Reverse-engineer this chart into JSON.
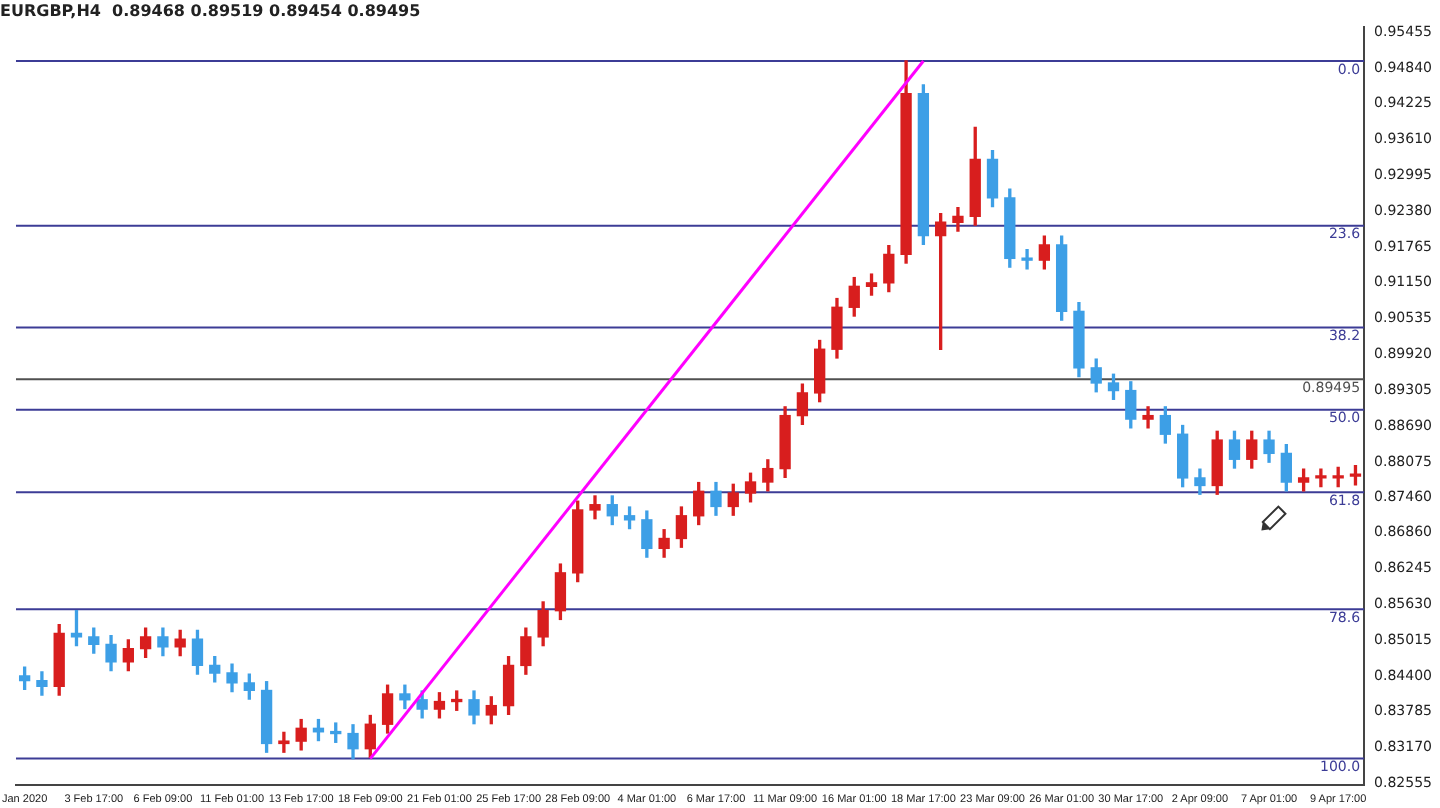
{
  "chart_data": {
    "type": "candlestick",
    "title": "EURGBP,H4  0.89468 0.89519 0.89454 0.89495",
    "categories": [
      "Jan 2020",
      null,
      null,
      null,
      "3 Feb 17:00",
      null,
      null,
      null,
      "6 Feb 09:00",
      null,
      null,
      null,
      "11 Feb 01:00",
      null,
      null,
      null,
      "13 Feb 17:00",
      null,
      null,
      null,
      "18 Feb 09:00",
      null,
      null,
      null,
      "21 Feb 01:00",
      null,
      null,
      null,
      "25 Feb 17:00",
      null,
      null,
      null,
      "28 Feb 09:00",
      null,
      null,
      null,
      "4 Mar 01:00",
      null,
      null,
      null,
      "6 Mar 17:00",
      null,
      null,
      null,
      "11 Mar 09:00",
      null,
      null,
      null,
      "16 Mar 01:00",
      null,
      null,
      null,
      "18 Mar 17:00",
      null,
      null,
      null,
      "23 Mar 09:00",
      null,
      null,
      null,
      "26 Mar 01:00",
      null,
      null,
      null,
      "30 Mar 17:00",
      null,
      null,
      null,
      "2 Apr 09:00",
      null,
      null,
      null,
      "7 Apr 01:00",
      null,
      null,
      null,
      "9 Apr 17:00",
      null
    ],
    "ohlc": [
      [
        0.844,
        0.8455,
        0.8417,
        0.8432
      ],
      [
        0.8432,
        0.8447,
        0.8407,
        0.8422
      ],
      [
        0.8422,
        0.8528,
        0.8407,
        0.8513
      ],
      [
        0.8513,
        0.8552,
        0.8492,
        0.8507
      ],
      [
        0.8507,
        0.8522,
        0.8479,
        0.8494
      ],
      [
        0.8494,
        0.8509,
        0.8449,
        0.8464
      ],
      [
        0.8464,
        0.8502,
        0.8449,
        0.8487
      ],
      [
        0.8487,
        0.8522,
        0.8472,
        0.8507
      ],
      [
        0.8507,
        0.8522,
        0.8475,
        0.849
      ],
      [
        0.849,
        0.8518,
        0.8475,
        0.8503
      ],
      [
        0.8503,
        0.8518,
        0.8443,
        0.8458
      ],
      [
        0.8458,
        0.8473,
        0.843,
        0.8445
      ],
      [
        0.8445,
        0.846,
        0.8413,
        0.8428
      ],
      [
        0.8428,
        0.8443,
        0.84,
        0.8415
      ],
      [
        0.8415,
        0.843,
        0.8309,
        0.8324
      ],
      [
        0.8324,
        0.8343,
        0.8309,
        0.8328
      ],
      [
        0.8328,
        0.8365,
        0.8313,
        0.835
      ],
      [
        0.835,
        0.8365,
        0.8329,
        0.8344
      ],
      [
        0.8344,
        0.8359,
        0.8326,
        0.8341
      ],
      [
        0.8341,
        0.8356,
        0.8298,
        0.8315
      ],
      [
        0.8315,
        0.8372,
        0.83,
        0.8357
      ],
      [
        0.8357,
        0.8424,
        0.8342,
        0.8409
      ],
      [
        0.8409,
        0.8424,
        0.8384,
        0.8399
      ],
      [
        0.8399,
        0.8414,
        0.8368,
        0.8383
      ],
      [
        0.8383,
        0.8411,
        0.8368,
        0.8396
      ],
      [
        0.8396,
        0.8414,
        0.8381,
        0.8399
      ],
      [
        0.8399,
        0.8414,
        0.8358,
        0.8373
      ],
      [
        0.8373,
        0.8404,
        0.8358,
        0.8389
      ],
      [
        0.8389,
        0.8473,
        0.8374,
        0.8458
      ],
      [
        0.8458,
        0.8522,
        0.8443,
        0.8507
      ],
      [
        0.8507,
        0.8567,
        0.8492,
        0.8552
      ],
      [
        0.8552,
        0.8632,
        0.8537,
        0.8617
      ],
      [
        0.8617,
        0.874,
        0.8602,
        0.8725
      ],
      [
        0.8725,
        0.8749,
        0.871,
        0.8734
      ],
      [
        0.8734,
        0.8749,
        0.87,
        0.8715
      ],
      [
        0.8715,
        0.873,
        0.8693,
        0.8708
      ],
      [
        0.8708,
        0.8723,
        0.8644,
        0.8659
      ],
      [
        0.8659,
        0.8691,
        0.8644,
        0.8676
      ],
      [
        0.8676,
        0.873,
        0.8661,
        0.8715
      ],
      [
        0.8715,
        0.8772,
        0.87,
        0.8757
      ],
      [
        0.8757,
        0.8772,
        0.8716,
        0.8731
      ],
      [
        0.8731,
        0.8769,
        0.8716,
        0.8754
      ],
      [
        0.8754,
        0.8788,
        0.8739,
        0.8773
      ],
      [
        0.8773,
        0.8811,
        0.8758,
        0.8796
      ],
      [
        0.8796,
        0.8902,
        0.8781,
        0.8887
      ],
      [
        0.8887,
        0.8941,
        0.8872,
        0.8926
      ],
      [
        0.8926,
        0.9016,
        0.8911,
        0.9001
      ],
      [
        0.9001,
        0.9088,
        0.8986,
        0.9073
      ],
      [
        0.9073,
        0.9124,
        0.9058,
        0.9109
      ],
      [
        0.9109,
        0.913,
        0.9094,
        0.9115
      ],
      [
        0.9115,
        0.9179,
        0.91,
        0.9164
      ],
      [
        0.9164,
        0.9496,
        0.9149,
        0.944
      ],
      [
        0.944,
        0.9455,
        0.9181,
        0.9196
      ],
      [
        0.9196,
        0.9234,
        0.9001,
        0.9219
      ],
      [
        0.9219,
        0.9244,
        0.9204,
        0.9229
      ],
      [
        0.9229,
        0.9382,
        0.9214,
        0.9327
      ],
      [
        0.9327,
        0.9342,
        0.9246,
        0.9261
      ],
      [
        0.9261,
        0.9276,
        0.9142,
        0.9157
      ],
      [
        0.9157,
        0.9172,
        0.9139,
        0.9154
      ],
      [
        0.9154,
        0.9195,
        0.9139,
        0.918
      ],
      [
        0.918,
        0.9195,
        0.9051,
        0.9066
      ],
      [
        0.9066,
        0.9081,
        0.8954,
        0.8969
      ],
      [
        0.8969,
        0.8984,
        0.8928,
        0.8943
      ],
      [
        0.8943,
        0.8958,
        0.8915,
        0.893
      ],
      [
        0.893,
        0.8945,
        0.8866,
        0.8881
      ],
      [
        0.8881,
        0.8902,
        0.8866,
        0.8887
      ],
      [
        0.8887,
        0.8902,
        0.884,
        0.8855
      ],
      [
        0.8855,
        0.887,
        0.8765,
        0.878
      ],
      [
        0.878,
        0.8795,
        0.8752,
        0.8767
      ],
      [
        0.8767,
        0.886,
        0.8752,
        0.8845
      ],
      [
        0.8845,
        0.886,
        0.8797,
        0.8812
      ],
      [
        0.8812,
        0.886,
        0.8797,
        0.8845
      ],
      [
        0.8845,
        0.886,
        0.8807,
        0.8822
      ],
      [
        0.8822,
        0.8837,
        0.8758,
        0.8773
      ],
      [
        0.8773,
        0.8795,
        0.8758,
        0.878
      ],
      [
        0.878,
        0.8795,
        0.8765,
        0.878
      ],
      [
        0.878,
        0.8798,
        0.8765,
        0.8783
      ],
      [
        0.8783,
        0.8801,
        0.8768,
        0.8786
      ]
    ],
    "colors": [
      "#3d9fe6",
      "#3d9fe6",
      "#d81e1e",
      "#3d9fe6",
      "#3d9fe6",
      "#3d9fe6",
      "#d81e1e",
      "#d81e1e",
      "#3d9fe6",
      "#d81e1e",
      "#3d9fe6",
      "#3d9fe6",
      "#3d9fe6",
      "#3d9fe6",
      "#3d9fe6",
      "#d81e1e",
      "#d81e1e",
      "#3d9fe6",
      "#3d9fe6",
      "#3d9fe6",
      "#d81e1e",
      "#d81e1e",
      "#3d9fe6",
      "#3d9fe6",
      "#d81e1e",
      "#d81e1e",
      "#3d9fe6",
      "#d81e1e",
      "#d81e1e",
      "#d81e1e",
      "#d81e1e",
      "#d81e1e",
      "#d81e1e",
      "#d81e1e",
      "#3d9fe6",
      "#3d9fe6",
      "#3d9fe6",
      "#d81e1e",
      "#d81e1e",
      "#d81e1e",
      "#3d9fe6",
      "#d81e1e",
      "#d81e1e",
      "#d81e1e",
      "#d81e1e",
      "#d81e1e",
      "#d81e1e",
      "#d81e1e",
      "#d81e1e",
      "#d81e1e",
      "#d81e1e",
      "#d81e1e",
      "#3d9fe6",
      "#d81e1e",
      "#d81e1e",
      "#d81e1e",
      "#3d9fe6",
      "#3d9fe6",
      "#3d9fe6",
      "#d81e1e",
      "#3d9fe6",
      "#3d9fe6",
      "#3d9fe6",
      "#3d9fe6",
      "#3d9fe6",
      "#d81e1e",
      "#3d9fe6",
      "#3d9fe6",
      "#3d9fe6",
      "#d81e1e",
      "#3d9fe6",
      "#d81e1e",
      "#3d9fe6",
      "#3d9fe6",
      "#d81e1e",
      "#d81e1e",
      "#d81e1e",
      "#d81e1e"
    ],
    "series": [
      {
        "type": "line",
        "color": "#ff00ff",
        "x": [
          "18 Feb 09:00",
          "18 Mar 17:00"
        ],
        "values": [
          0.8298,
          0.9496
        ]
      }
    ],
    "ylim": [
      0.8253,
      0.9554
    ],
    "yticks": [
      0.95455,
      {
        "value": 0.9484,
        "label": "0.94840"
      },
      0.94225,
      {
        "value": 0.9361,
        "label": "0.93610"
      },
      0.92995,
      {
        "value": 0.9238,
        "label": "0.92380"
      },
      0.91765,
      {
        "value": 0.9115,
        "label": "0.91150"
      },
      0.90535,
      {
        "value": 0.8992,
        "label": "0.89920"
      },
      0.89305,
      {
        "value": 0.8869,
        "label": "0.88690"
      },
      0.88075,
      {
        "value": 0.8746,
        "label": "0.87460"
      },
      {
        "value": 0.8686,
        "label": "0.86860"
      },
      0.86245,
      {
        "value": 0.8563,
        "label": "0.85630"
      },
      0.85015,
      {
        "value": 0.844,
        "label": "0.84400"
      },
      0.83785,
      {
        "value": 0.8317,
        "label": "0.83170"
      },
      0.82555
    ],
    "annotations": [
      {
        "text": "0.0",
        "y": 0.9496
      },
      {
        "text": "23.6",
        "y": 0.92132
      },
      {
        "text": "38.2",
        "y": 0.90384
      },
      {
        "text": "50.0",
        "y": 0.8897
      },
      {
        "text": "61.8",
        "y": 0.87556
      },
      {
        "text": "78.6",
        "y": 0.85543
      },
      {
        "text": "100.0",
        "y": 0.8298
      }
    ],
    "ref_lines": [
      {
        "axis": "y",
        "value": 0.9496,
        "color": "#3c3c96"
      },
      {
        "axis": "y",
        "value": 0.92132,
        "color": "#3c3c96"
      },
      {
        "axis": "y",
        "value": 0.90384,
        "color": "#3c3c96"
      },
      {
        "axis": "y",
        "value": 0.8897,
        "color": "#3c3c96"
      },
      {
        "axis": "y",
        "value": 0.87556,
        "color": "#3c3c96"
      },
      {
        "axis": "y",
        "value": 0.85543,
        "color": "#3c3c96"
      },
      {
        "axis": "y",
        "value": 0.8298,
        "color": "#3c3c96"
      },
      {
        "axis": "y",
        "value": 0.89495,
        "label": "0.89495",
        "color": "#505050"
      }
    ],
    "grid": false,
    "legend": false
  }
}
